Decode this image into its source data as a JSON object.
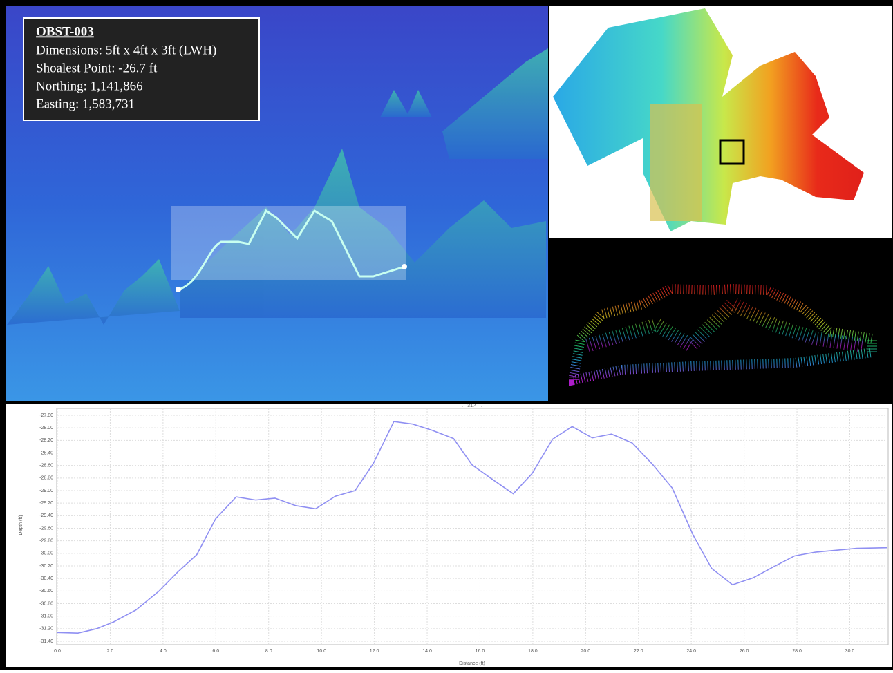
{
  "info_box": {
    "title": "OBST-003",
    "lines": [
      "Dimensions: 5ft x 4ft x 3ft (LWH)",
      "Shoalest Point: -26.7 ft",
      "Northing: 1,141,866",
      "Easting: 1,583,731"
    ]
  },
  "chart_data": {
    "type": "line",
    "annotation": "← 31.4 →",
    "x_label": "Distance (ft)",
    "y_label": "Depth (ft)",
    "x": [
      0,
      0.78,
      1.49,
      2.14,
      2.98,
      3.85,
      4.55,
      5.28,
      5.99,
      6.77,
      7.51,
      8.24,
      9.02,
      9.78,
      10.52,
      11.27,
      11.96,
      12.74,
      13.45,
      14.19,
      15.0,
      15.7,
      16.5,
      17.26,
      17.97,
      18.75,
      19.49,
      20.25,
      20.98,
      21.76,
      22.55,
      23.28,
      24.07,
      24.77,
      25.56,
      26.34,
      27.13,
      27.91,
      28.7,
      29.48,
      30.26,
      31.4
    ],
    "series": [
      {
        "color": "#8f8ff2",
        "values": [
          -31.26,
          -31.27,
          -31.2,
          -31.09,
          -30.9,
          -30.6,
          -30.3,
          -30.02,
          -29.45,
          -29.1,
          -29.15,
          -29.12,
          -29.24,
          -29.29,
          -29.09,
          -29.0,
          -28.57,
          -27.9,
          -27.94,
          -28.04,
          -28.17,
          -28.59,
          -28.83,
          -29.05,
          -28.73,
          -28.18,
          -27.98,
          -28.16,
          -28.1,
          -28.24,
          -28.59,
          -28.96,
          -29.71,
          -30.24,
          -30.5,
          -30.39,
          -30.21,
          -30.04,
          -29.98,
          -29.95,
          -29.92,
          -29.91
        ]
      }
    ],
    "xlim": [
      0,
      31.4
    ],
    "ylim": [
      -31.4,
      -27.8
    ],
    "xticks": [
      {
        "value": 0,
        "label": "0.0"
      },
      {
        "value": 2,
        "label": "2.0"
      },
      {
        "value": 4,
        "label": "4.0"
      },
      {
        "value": 6,
        "label": "6.0"
      },
      {
        "value": 8,
        "label": "8.0"
      },
      {
        "value": 10,
        "label": "10.0"
      },
      {
        "value": 12,
        "label": "12.0"
      },
      {
        "value": 14,
        "label": "14.0"
      },
      {
        "value": 16,
        "label": "16.0"
      },
      {
        "value": 18,
        "label": "18.0"
      },
      {
        "value": 20,
        "label": "20.0"
      },
      {
        "value": 22,
        "label": "22.0"
      },
      {
        "value": 24,
        "label": "24.0"
      },
      {
        "value": 26,
        "label": "26.0"
      },
      {
        "value": 28,
        "label": "28.0"
      },
      {
        "value": 30,
        "label": "30.0"
      }
    ],
    "yticks": [
      {
        "value": -27.8,
        "label": "-27.80"
      },
      {
        "value": -28,
        "label": "-28.00"
      },
      {
        "value": -28.2,
        "label": "-28.20"
      },
      {
        "value": -28.4,
        "label": "-28.40"
      },
      {
        "value": -28.6,
        "label": "-28.60"
      },
      {
        "value": -28.8,
        "label": "-28.80"
      },
      {
        "value": -29,
        "label": "-29.00"
      },
      {
        "value": -29.2,
        "label": "-29.20"
      },
      {
        "value": -29.4,
        "label": "-29.40"
      },
      {
        "value": -29.6,
        "label": "-29.60"
      },
      {
        "value": -29.8,
        "label": "-29.80"
      },
      {
        "value": -30,
        "label": "-30.00"
      },
      {
        "value": -30.2,
        "label": "-30.20"
      },
      {
        "value": -30.4,
        "label": "-30.40"
      },
      {
        "value": -30.6,
        "label": "-30.60"
      },
      {
        "value": -30.8,
        "label": "-30.80"
      },
      {
        "value": -31,
        "label": "-31.00"
      },
      {
        "value": -31.2,
        "label": "-31.20"
      },
      {
        "value": -31.4,
        "label": "-31.40"
      }
    ],
    "grid": true
  }
}
